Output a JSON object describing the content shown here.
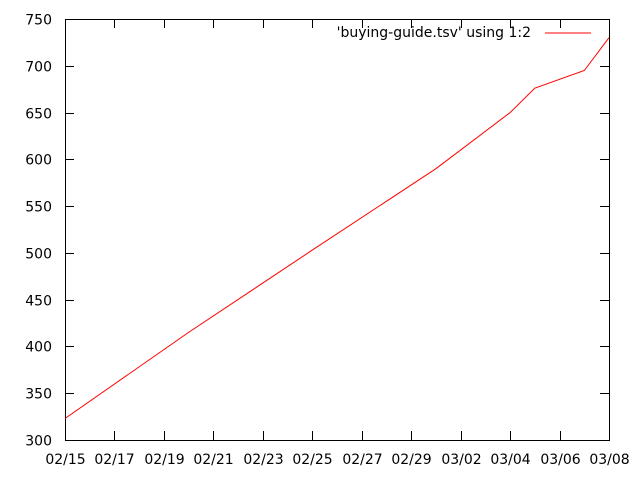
{
  "chart_data": {
    "type": "line",
    "title": "",
    "xlabel": "",
    "ylabel": "",
    "x_tick_labels": [
      "02/15",
      "02/17",
      "02/19",
      "02/21",
      "02/23",
      "02/25",
      "02/27",
      "02/29",
      "03/02",
      "03/04",
      "03/06",
      "03/08"
    ],
    "y_tick_labels": [
      "300",
      "350",
      "400",
      "450",
      "500",
      "550",
      "600",
      "650",
      "700",
      "750"
    ],
    "xlim": [
      "02/15",
      "03/08"
    ],
    "ylim": [
      300,
      750
    ],
    "grid": false,
    "legend_position": "top-right",
    "series": [
      {
        "name": "'buying-guide.tsv' using 1:2",
        "color": "#ff0000",
        "x": [
          "02/15",
          "02/20",
          "02/25",
          "03/01",
          "03/04",
          "03/05",
          "03/07",
          "03/08"
        ],
        "y": [
          323,
          415,
          503,
          590,
          650,
          676,
          695,
          730
        ]
      }
    ]
  }
}
